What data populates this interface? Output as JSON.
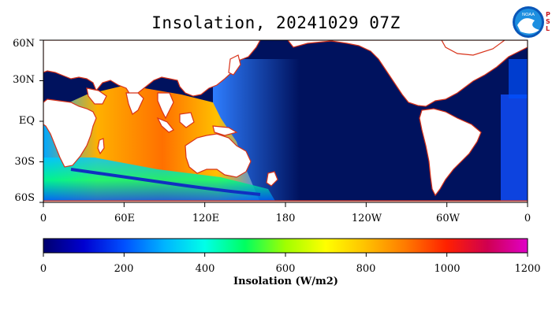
{
  "title": "Insolation, 20241029 07Z",
  "logo": {
    "name": "NOAA",
    "side_text": [
      "P",
      "S",
      "L"
    ]
  },
  "map": {
    "lat_labels": [
      "60N",
      "30N",
      "EQ",
      "30S",
      "60S"
    ],
    "lon_labels": [
      "0",
      "60E",
      "120E",
      "180",
      "120W",
      "60W",
      "0"
    ],
    "land_color": "#ffffff",
    "night_color": "#00125e",
    "coast_color": "#d8331a"
  },
  "colorbar": {
    "labels": [
      "0",
      "200",
      "400",
      "600",
      "800",
      "1000",
      "1200"
    ],
    "title": "Insolation (W/m2)",
    "colors": [
      "#00006e",
      "#0000d0",
      "#0050ff",
      "#00b4ff",
      "#00ffe8",
      "#00ff60",
      "#a0ff00",
      "#ffff00",
      "#ffc000",
      "#ff7800",
      "#ff2000",
      "#d00050",
      "#e000c8"
    ]
  }
}
